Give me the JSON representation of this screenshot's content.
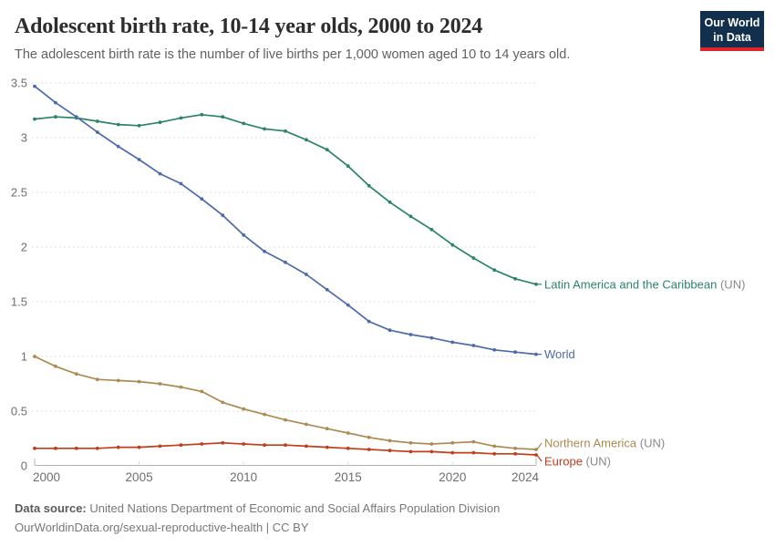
{
  "header": {
    "title": "Adolescent birth rate, 10-14 year olds, 2000 to 2024",
    "subtitle": "The adolescent birth rate is the number of live births per 1,000 women aged 10 to 14 years old.",
    "logo": {
      "line1": "Our World",
      "line2": "in Data",
      "bg_color": "#12304d",
      "accent_color": "#e0232e"
    }
  },
  "footer": {
    "source_label": "Data source:",
    "source_text": " United Nations Department of Economic and Social Affairs Population Division",
    "note_text": "OurWorldinData.org/sexual-reproductive-health | CC BY"
  },
  "chart_data": {
    "type": "line",
    "title": "Adolescent birth rate, 10-14 year olds, 2000 to 2024",
    "xlabel": "",
    "ylabel": "live births per 1,000 women aged 10 to 14",
    "xlim": [
      2000,
      2024
    ],
    "ylim": [
      0,
      3.5
    ],
    "x_ticks": [
      2000,
      2005,
      2010,
      2015,
      2020,
      2024
    ],
    "y_ticks": [
      0,
      0.5,
      1,
      1.5,
      2,
      2.5,
      3,
      3.5
    ],
    "grid": "horizontal-dashed",
    "legend_position": "end-of-line-labels",
    "x": [
      2000,
      2001,
      2002,
      2003,
      2004,
      2005,
      2006,
      2007,
      2008,
      2009,
      2010,
      2011,
      2012,
      2013,
      2014,
      2015,
      2016,
      2017,
      2018,
      2019,
      2020,
      2021,
      2022,
      2023,
      2024
    ],
    "series": [
      {
        "name": "Latin America and the Caribbean",
        "suffix": " (UN)",
        "color": "#2c8465",
        "values": [
          3.17,
          3.19,
          3.18,
          3.15,
          3.12,
          3.11,
          3.14,
          3.18,
          3.21,
          3.19,
          3.13,
          3.08,
          3.06,
          2.98,
          2.89,
          2.74,
          2.56,
          2.41,
          2.28,
          2.16,
          2.02,
          1.9,
          1.79,
          1.71,
          1.66
        ]
      },
      {
        "name": "World",
        "suffix": "",
        "color": "#4c6ba9",
        "values": [
          3.47,
          3.32,
          3.19,
          3.05,
          2.92,
          2.8,
          2.67,
          2.58,
          2.44,
          2.29,
          2.11,
          1.96,
          1.86,
          1.75,
          1.61,
          1.47,
          1.32,
          1.24,
          1.2,
          1.17,
          1.13,
          1.1,
          1.06,
          1.04,
          1.02
        ]
      },
      {
        "name": "Northern America",
        "suffix": " (UN)",
        "color": "#ad8a51",
        "values": [
          1.0,
          0.91,
          0.84,
          0.79,
          0.78,
          0.77,
          0.75,
          0.72,
          0.68,
          0.58,
          0.52,
          0.47,
          0.42,
          0.38,
          0.34,
          0.3,
          0.26,
          0.23,
          0.21,
          0.2,
          0.21,
          0.22,
          0.18,
          0.16,
          0.15
        ]
      },
      {
        "name": "Europe",
        "suffix": " (UN)",
        "color": "#c23d1b",
        "values": [
          0.16,
          0.16,
          0.16,
          0.16,
          0.17,
          0.17,
          0.18,
          0.19,
          0.2,
          0.21,
          0.2,
          0.19,
          0.19,
          0.18,
          0.17,
          0.16,
          0.15,
          0.14,
          0.13,
          0.13,
          0.12,
          0.12,
          0.11,
          0.11,
          0.1
        ]
      }
    ],
    "colors": {
      "gridline": "#dcdcdc",
      "axis_line": "#b3b3b3",
      "tick_text": "#6e6e6e",
      "suffix_text": "#8a8a8a"
    }
  }
}
